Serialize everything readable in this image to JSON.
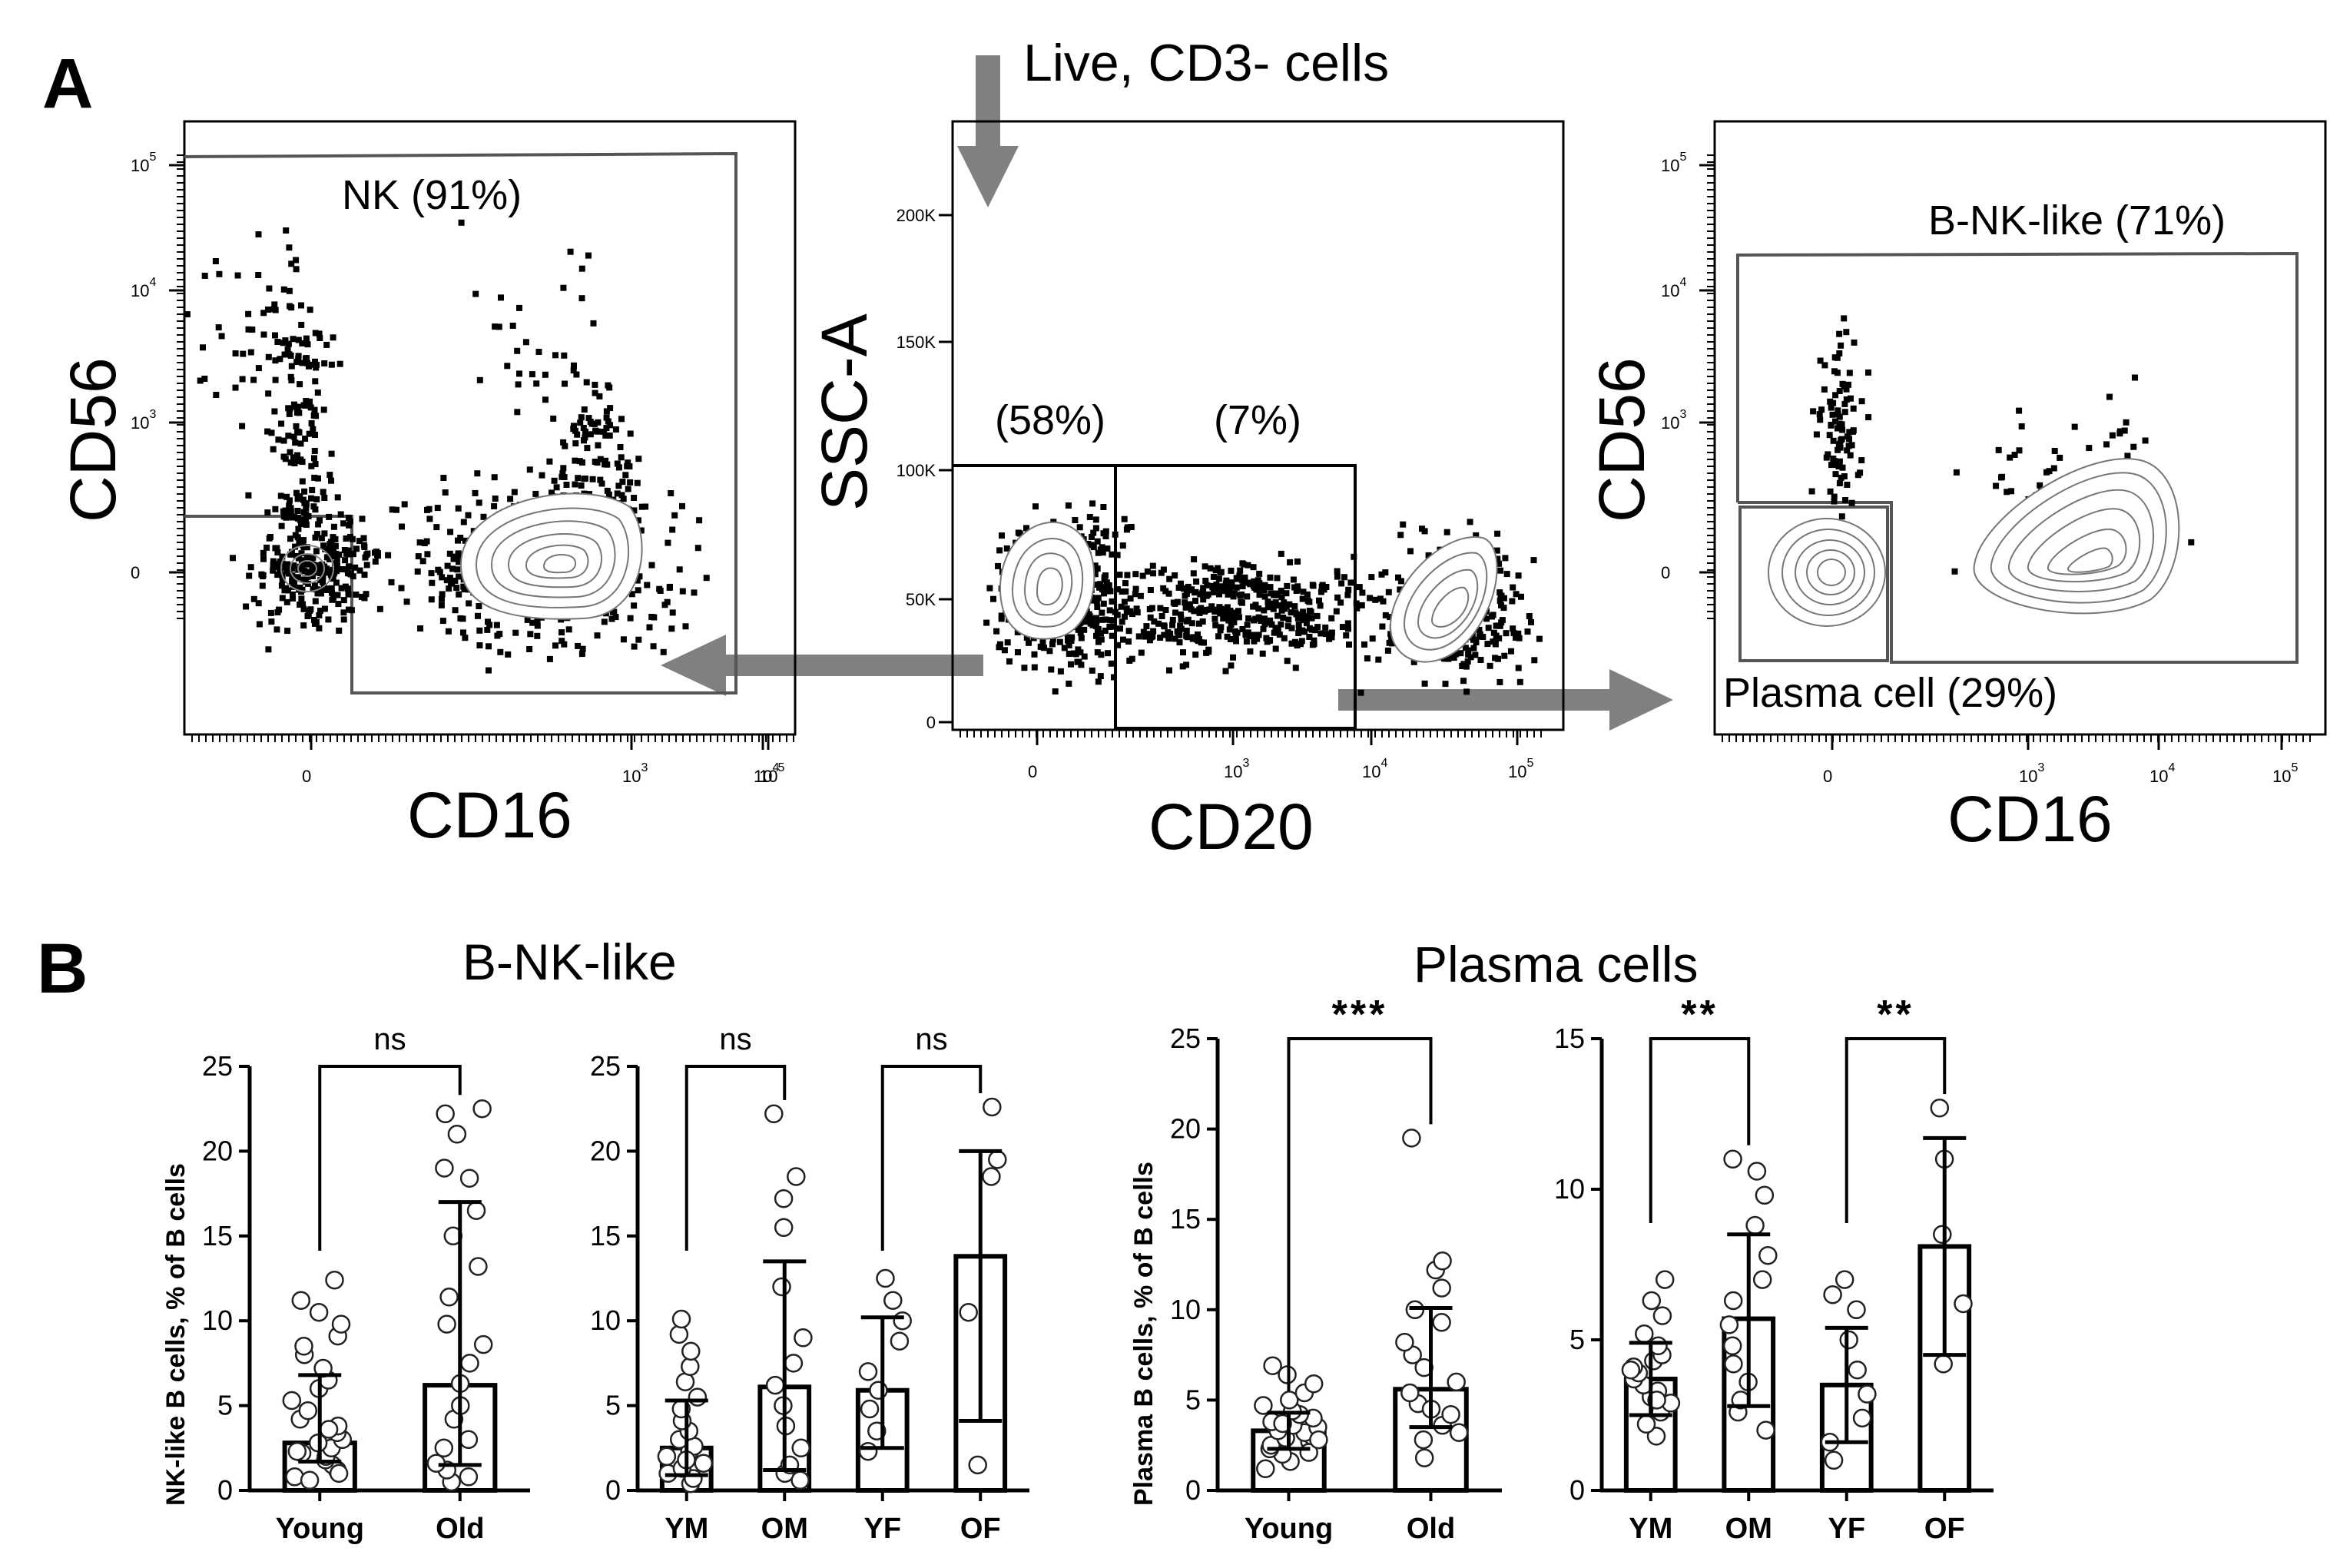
{
  "figure": {
    "panel_a_letter": "A",
    "panel_b_letter": "B",
    "gating_note": "Live, CD3- cells"
  },
  "flow_plots": [
    {
      "id": "nk",
      "x_label": "CD16",
      "y_label": "CD56",
      "x_ticks": [
        {
          "base": "0",
          "exp": ""
        },
        {
          "base": "10",
          "exp": "3"
        },
        {
          "base": "10",
          "exp": "4"
        },
        {
          "base": "10",
          "exp": "5"
        }
      ],
      "y_ticks": [
        {
          "base": "0",
          "exp": ""
        },
        {
          "base": "10",
          "exp": "3"
        },
        {
          "base": "10",
          "exp": "4"
        },
        {
          "base": "10",
          "exp": "5"
        }
      ],
      "gates": [
        {
          "label": "NK (91%)"
        }
      ]
    },
    {
      "id": "b",
      "x_label": "CD20",
      "y_label": "SSC-A",
      "x_ticks": [
        {
          "base": "0",
          "exp": ""
        },
        {
          "base": "10",
          "exp": "3"
        },
        {
          "base": "10",
          "exp": "4"
        },
        {
          "base": "10",
          "exp": "5"
        }
      ],
      "y_ticks": [
        {
          "base": "0",
          "exp": ""
        },
        {
          "base": "50K",
          "exp": ""
        },
        {
          "base": "100K",
          "exp": ""
        },
        {
          "base": "150K",
          "exp": ""
        },
        {
          "base": "200K",
          "exp": ""
        }
      ],
      "gates": [
        {
          "label": "(58%)"
        },
        {
          "label": "(7%)"
        }
      ]
    },
    {
      "id": "bsub",
      "x_label": "CD16",
      "y_label": "CD56",
      "x_ticks": [
        {
          "base": "0",
          "exp": ""
        },
        {
          "base": "10",
          "exp": "3"
        },
        {
          "base": "10",
          "exp": "4"
        },
        {
          "base": "10",
          "exp": "5"
        }
      ],
      "y_ticks": [
        {
          "base": "0",
          "exp": ""
        },
        {
          "base": "10",
          "exp": "3"
        },
        {
          "base": "10",
          "exp": "4"
        },
        {
          "base": "10",
          "exp": "5"
        }
      ],
      "gates": [
        {
          "label": "B-NK-like (71%)"
        },
        {
          "label": "Plasma cell (29%)"
        }
      ]
    }
  ],
  "chart_data": [
    {
      "type": "bar",
      "section_title": "B-NK-like",
      "ylabel": "NK-like B cells, % of B cells",
      "ylim": [
        0,
        25
      ],
      "yticks": [
        0,
        5,
        10,
        15,
        20,
        25
      ],
      "ytick_labels": [
        "0",
        "5",
        "10",
        "15",
        "20",
        "25"
      ],
      "categories": [
        "Young",
        "Old"
      ],
      "means": [
        2.8,
        6.2
      ],
      "sd_low": [
        1.7,
        1.5
      ],
      "sd_high": [
        6.8,
        17.0
      ],
      "points": [
        [
          0.8,
          1.2,
          1.5,
          1.8,
          2.0,
          2.2,
          2.5,
          2.8,
          3.0,
          3.4,
          3.8,
          4.2,
          4.7,
          5.3,
          6.0,
          6.5,
          7.2,
          8.0,
          8.5,
          9.1,
          9.8,
          10.5,
          11.2,
          12.4,
          1.0,
          2.3,
          0.6,
          3.6
        ],
        [
          0.5,
          0.8,
          1.2,
          1.6,
          2.5,
          3.0,
          4.2,
          5.0,
          6.3,
          7.5,
          8.6,
          9.8,
          11.4,
          13.2,
          15.0,
          16.5,
          18.4,
          19.0,
          21.0,
          22.5,
          22.2
        ]
      ],
      "comparisons": [
        {
          "from": 0,
          "to": 1,
          "label": "ns"
        }
      ]
    },
    {
      "type": "bar",
      "section_title": "",
      "ylabel": "",
      "ylim": [
        0,
        25
      ],
      "yticks": [
        0,
        5,
        10,
        15,
        20,
        25
      ],
      "ytick_labels": [
        "0",
        "5",
        "10",
        "15",
        "20",
        "25"
      ],
      "categories": [
        "YM",
        "OM",
        "YF",
        "OF"
      ],
      "means": [
        2.5,
        6.1,
        5.9,
        13.8
      ],
      "sd_low": [
        0.9,
        1.2,
        2.5,
        4.1
      ],
      "sd_high": [
        5.3,
        13.5,
        10.2,
        20.0
      ],
      "points": [
        [
          0.4,
          0.7,
          1.0,
          1.3,
          1.6,
          2.0,
          2.3,
          2.6,
          3.0,
          3.5,
          4.1,
          4.8,
          5.5,
          6.4,
          7.3,
          8.2,
          9.2,
          10.1,
          1.8
        ],
        [
          0.6,
          1.0,
          1.5,
          2.5,
          3.8,
          5.0,
          6.2,
          7.5,
          9.0,
          12.0,
          15.5,
          17.2,
          18.5,
          22.2
        ],
        [
          2.3,
          3.5,
          4.8,
          5.9,
          7.0,
          8.8,
          10.0,
          11.2,
          12.5
        ],
        [
          1.5,
          10.5,
          18.5,
          19.5,
          22.6
        ]
      ],
      "comparisons": [
        {
          "from": 0,
          "to": 1,
          "label": "ns"
        },
        {
          "from": 2,
          "to": 3,
          "label": "ns"
        }
      ]
    },
    {
      "type": "bar",
      "section_title": "Plasma cells",
      "ylabel": "Plasma B cells, % of B cells",
      "ylim": [
        0,
        25
      ],
      "yticks": [
        0,
        5,
        10,
        15,
        20,
        25
      ],
      "ytick_labels": [
        "0",
        "5",
        "10",
        "15",
        "20",
        "25"
      ],
      "categories": [
        "Young",
        "Old"
      ],
      "means": [
        3.3,
        5.6
      ],
      "sd_low": [
        2.3,
        3.5
      ],
      "sd_high": [
        4.3,
        10.1
      ],
      "points": [
        [
          1.2,
          1.6,
          2.0,
          2.3,
          2.5,
          2.7,
          2.9,
          3.0,
          3.2,
          3.3,
          3.5,
          3.6,
          3.8,
          4.0,
          4.2,
          4.4,
          4.7,
          5.0,
          5.4,
          5.9,
          6.4,
          6.9,
          2.1,
          2.8,
          3.7
        ],
        [
          1.8,
          2.8,
          3.2,
          3.6,
          4.2,
          4.8,
          5.4,
          6.0,
          6.8,
          7.5,
          8.2,
          9.3,
          10.0,
          11.2,
          12.2,
          12.7,
          19.5,
          4.5
        ]
      ],
      "comparisons": [
        {
          "from": 0,
          "to": 1,
          "label": "***"
        }
      ]
    },
    {
      "type": "bar",
      "section_title": "",
      "ylabel": "",
      "ylim": [
        0,
        15
      ],
      "yticks": [
        0,
        5,
        10,
        15
      ],
      "ytick_labels": [
        "0",
        "5",
        "10",
        "15"
      ],
      "categories": [
        "YM",
        "OM",
        "YF",
        "OF"
      ],
      "means": [
        3.7,
        5.7,
        3.5,
        8.1
      ],
      "sd_low": [
        2.5,
        2.8,
        1.6,
        4.5
      ],
      "sd_high": [
        4.9,
        8.5,
        5.4,
        11.7
      ],
      "points": [
        [
          1.8,
          2.2,
          2.6,
          2.9,
          3.1,
          3.3,
          3.5,
          3.7,
          3.9,
          4.1,
          4.3,
          4.5,
          4.8,
          5.2,
          5.8,
          6.3,
          7.0,
          3.0,
          4.0
        ],
        [
          2.0,
          2.6,
          3.0,
          3.6,
          4.2,
          4.8,
          5.5,
          6.3,
          7.0,
          7.8,
          8.8,
          9.8,
          10.6,
          11.0
        ],
        [
          1.0,
          1.6,
          2.4,
          3.2,
          4.0,
          5.0,
          6.0,
          6.5,
          7.0
        ],
        [
          4.2,
          6.2,
          8.5,
          11.0,
          12.7
        ]
      ],
      "comparisons": [
        {
          "from": 0,
          "to": 1,
          "label": "**"
        },
        {
          "from": 2,
          "to": 3,
          "label": "**"
        }
      ]
    }
  ]
}
